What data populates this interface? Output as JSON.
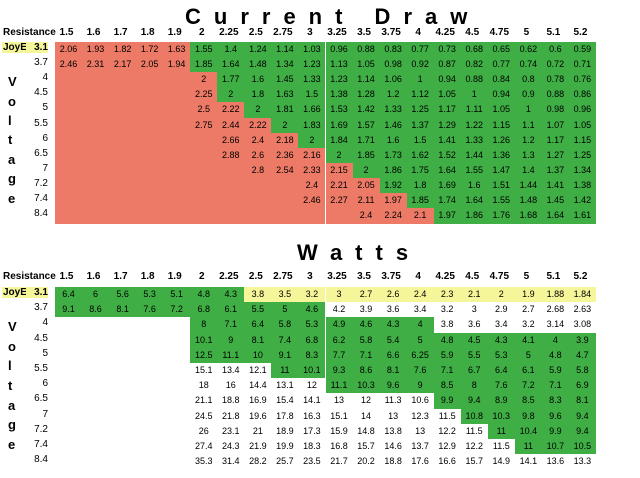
{
  "chart_data": [
    {
      "type": "table",
      "title": "Current Draw",
      "corner_label": "Resistance",
      "row_axis_label": "Voltage",
      "highlight_row_label": "JoyE",
      "columns": [
        "1.5",
        "1.6",
        "1.7",
        "1.8",
        "1.9",
        "2",
        "2.25",
        "2.5",
        "2.75",
        "3",
        "3.25",
        "3.5",
        "3.75",
        "4",
        "4.25",
        "4.5",
        "4.75",
        "5",
        "5.1",
        "5.2"
      ],
      "rows": [
        "3.1",
        "3.7",
        "4",
        "4.5",
        "5",
        "5.5",
        "6",
        "6.5",
        "7",
        "7.2",
        "7.4",
        "8.4"
      ],
      "values": [
        [
          "2.06",
          "1.93",
          "1.82",
          "1.72",
          "1.63",
          "1.55",
          "1.4",
          "1.24",
          "1.14",
          "1.03",
          "0.96",
          "0.88",
          "0.83",
          "0.77",
          "0.73",
          "0.68",
          "0.65",
          "0.62",
          "0.6",
          "0.59"
        ],
        [
          "2.46",
          "2.31",
          "2.17",
          "2.05",
          "1.94",
          "1.85",
          "1.64",
          "1.48",
          "1.34",
          "1.23",
          "1.13",
          "1.05",
          "0.98",
          "0.92",
          "0.87",
          "0.82",
          "0.77",
          "0.74",
          "0.72",
          "0.71"
        ],
        [
          "",
          "",
          "",
          "",
          "",
          "2",
          "1.77",
          "1.6",
          "1.45",
          "1.33",
          "1.23",
          "1.14",
          "1.06",
          "1",
          "0.94",
          "0.88",
          "0.84",
          "0.8",
          "0.78",
          "0.76"
        ],
        [
          "",
          "",
          "",
          "",
          "",
          "2.25",
          "2",
          "1.8",
          "1.63",
          "1.5",
          "1.38",
          "1.28",
          "1.2",
          "1.12",
          "1.05",
          "1",
          "0.94",
          "0.9",
          "0.88",
          "0.86"
        ],
        [
          "",
          "",
          "",
          "",
          "",
          "2.5",
          "2.22",
          "2",
          "1.81",
          "1.66",
          "1.53",
          "1.42",
          "1.33",
          "1.25",
          "1.17",
          "1.11",
          "1.05",
          "1",
          "0.98",
          "0.96"
        ],
        [
          "",
          "",
          "",
          "",
          "",
          "2.75",
          "2.44",
          "2.22",
          "2",
          "1.83",
          "1.69",
          "1.57",
          "1.46",
          "1.37",
          "1.29",
          "1.22",
          "1.15",
          "1.1",
          "1.07",
          "1.05"
        ],
        [
          "",
          "",
          "",
          "",
          "",
          "",
          "2.66",
          "2.4",
          "2.18",
          "2",
          "1.84",
          "1.71",
          "1.6",
          "1.5",
          "1.41",
          "1.33",
          "1.26",
          "1.2",
          "1.17",
          "1.15"
        ],
        [
          "",
          "",
          "",
          "",
          "",
          "",
          "2.88",
          "2.6",
          "2.36",
          "2.16",
          "2",
          "1.85",
          "1.73",
          "1.62",
          "1.52",
          "1.44",
          "1.36",
          "1.3",
          "1.27",
          "1.25"
        ],
        [
          "",
          "",
          "",
          "",
          "",
          "",
          "",
          "2.8",
          "2.54",
          "2.33",
          "2.15",
          "2",
          "1.86",
          "1.75",
          "1.64",
          "1.55",
          "1.47",
          "1.4",
          "1.37",
          "1.34"
        ],
        [
          "",
          "",
          "",
          "",
          "",
          "",
          "",
          "",
          "",
          "2.4",
          "2.21",
          "2.05",
          "1.92",
          "1.8",
          "1.69",
          "1.6",
          "1.51",
          "1.44",
          "1.41",
          "1.38"
        ],
        [
          "",
          "",
          "",
          "",
          "",
          "",
          "",
          "",
          "",
          "2.46",
          "2.27",
          "2.11",
          "1.97",
          "1.85",
          "1.74",
          "1.64",
          "1.55",
          "1.48",
          "1.45",
          "1.42"
        ],
        [
          "",
          "",
          "",
          "",
          "",
          "",
          "",
          "",
          "",
          "",
          "",
          "2.4",
          "2.24",
          "2.1",
          "1.97",
          "1.86",
          "1.76",
          "1.68",
          "1.64",
          "1.61"
        ]
      ],
      "colors": [
        "RRRRRGGGGGGGGGGGGGGG",
        "RRRRRGGGGGGGGGGGGGGG",
        "RRRRRRGGGGGGGGGGGGGG",
        "RRRRRRGGGGGGGGGGGGGG",
        "RRRRRRRGGGGGGGGGGGGG",
        "RRRRRRRRGGGGGGGGGGGG",
        "RRRRRRRRRGGGGGGGGGGG",
        "RRRRRRRRRRGGGGGGGGGG",
        "RRRRRRRRRRRGGGGGGGGG",
        "RRRRRRRRRRRRGGGGGGGG",
        "RRRRRRRRRRRRRGGGGGGG",
        "RRRRRRRRRRRRRRGGGGGG"
      ]
    },
    {
      "type": "table",
      "title": "Watts",
      "corner_label": "Resistance",
      "row_axis_label": "Voltage",
      "highlight_row_label": "JoyE",
      "columns": [
        "1.5",
        "1.6",
        "1.7",
        "1.8",
        "1.9",
        "2",
        "2.25",
        "2.5",
        "2.75",
        "3",
        "3.25",
        "3.5",
        "3.75",
        "4",
        "4.25",
        "4.5",
        "4.75",
        "5",
        "5.1",
        "5.2"
      ],
      "rows": [
        "3.1",
        "3.7",
        "4",
        "4.5",
        "5",
        "5.5",
        "6",
        "6.5",
        "7",
        "7.2",
        "7.4",
        "8.4"
      ],
      "values": [
        [
          "6.4",
          "6",
          "5.6",
          "5.3",
          "5.1",
          "4.8",
          "4.3",
          "3.8",
          "3.5",
          "3.2",
          "3",
          "2.7",
          "2.6",
          "2.4",
          "2.3",
          "2.1",
          "2",
          "1.9",
          "1.88",
          "1.84"
        ],
        [
          "9.1",
          "8.6",
          "8.1",
          "7.6",
          "7.2",
          "6.8",
          "6.1",
          "5.5",
          "5",
          "4.6",
          "4.2",
          "3.9",
          "3.6",
          "3.4",
          "3.2",
          "3",
          "2.9",
          "2.7",
          "2.68",
          "2.63"
        ],
        [
          "",
          "",
          "",
          "",
          "",
          "8",
          "7.1",
          "6.4",
          "5.8",
          "5.3",
          "4.9",
          "4.6",
          "4.3",
          "4",
          "3.8",
          "3.6",
          "3.4",
          "3.2",
          "3.14",
          "3.08"
        ],
        [
          "",
          "",
          "",
          "",
          "",
          "10.1",
          "9",
          "8.1",
          "7.4",
          "6.8",
          "6.2",
          "5.8",
          "5.4",
          "5",
          "4.8",
          "4.5",
          "4.3",
          "4.1",
          "4",
          "3.9"
        ],
        [
          "",
          "",
          "",
          "",
          "",
          "12.5",
          "11.1",
          "10",
          "9.1",
          "8.3",
          "7.7",
          "7.1",
          "6.6",
          "6.25",
          "5.9",
          "5.5",
          "5.3",
          "5",
          "4.8",
          "4.7"
        ],
        [
          "",
          "",
          "",
          "",
          "",
          "15.1",
          "13.4",
          "12.1",
          "11",
          "10.1",
          "9.3",
          "8.6",
          "8.1",
          "7.6",
          "7.1",
          "6.7",
          "6.4",
          "6.1",
          "5.9",
          "5.8"
        ],
        [
          "",
          "",
          "",
          "",
          "",
          "18",
          "16",
          "14.4",
          "13.1",
          "12",
          "11.1",
          "10.3",
          "9.6",
          "9",
          "8.5",
          "8",
          "7.6",
          "7.2",
          "7.1",
          "6.9"
        ],
        [
          "",
          "",
          "",
          "",
          "",
          "21.1",
          "18.8",
          "16.9",
          "15.4",
          "14.1",
          "13",
          "12",
          "11.3",
          "10.6",
          "9.9",
          "9.4",
          "8.9",
          "8.5",
          "8.3",
          "8.1"
        ],
        [
          "",
          "",
          "",
          "",
          "",
          "24.5",
          "21.8",
          "19.6",
          "17.8",
          "16.3",
          "15.1",
          "14",
          "13",
          "12.3",
          "11.5",
          "10.8",
          "10.3",
          "9.8",
          "9.6",
          "9.4"
        ],
        [
          "",
          "",
          "",
          "",
          "",
          "26",
          "23.1",
          "21",
          "18.9",
          "17.3",
          "15.9",
          "14.8",
          "13.8",
          "13",
          "12.2",
          "11.5",
          "11",
          "10.4",
          "9.9",
          "9.4"
        ],
        [
          "",
          "",
          "",
          "",
          "",
          "27.4",
          "24.3",
          "21.9",
          "19.9",
          "18.3",
          "16.8",
          "15.7",
          "14.6",
          "13.7",
          "12.9",
          "12.2",
          "11.5",
          "11",
          "10.7",
          "10.5"
        ],
        [
          "",
          "",
          "",
          "",
          "",
          "35.3",
          "31.4",
          "28.2",
          "25.7",
          "23.5",
          "21.7",
          "20.2",
          "18.8",
          "17.6",
          "16.6",
          "15.7",
          "14.9",
          "14.1",
          "13.6",
          "13.3"
        ]
      ],
      "colors": [
        "GGGGGGGYYYYYYYYYYYYY",
        "GGGGGGGGGGWWWWWWWWWW",
        "WWWWWGGGGGGGGGWWWWWW",
        "WWWWWGGGGGGGGGGGGGGG",
        "WWWWWGGGGGGGGGGGGGGG",
        "WWWWWWWWGGGGGGGGGGGG",
        "WWWWWWWWWWGGGGGGGGGG",
        "WWWWWWWWWWWWWWGGGGGG",
        "WWWWWWWWWWWWWWWGGGGG",
        "WWWWWWWWWWWWWWWWGGGG",
        "WWWWWWWWWWWWWWWWWGGG",
        "WWWWWWWWWWWWWWWWWWWW"
      ]
    }
  ],
  "palette": {
    "R": "#ec7a66",
    "G": "#3fae45",
    "Y": "#f5f59a",
    "W": "#ffffff"
  }
}
